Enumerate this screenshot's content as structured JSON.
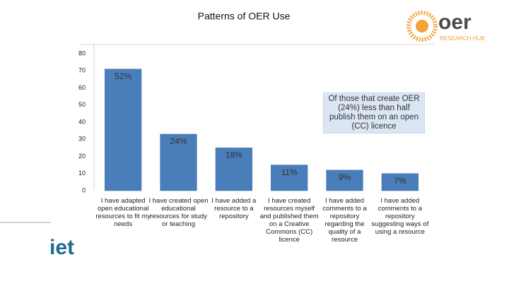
{
  "chart_data": {
    "type": "bar",
    "title": "Patterns of OER Use",
    "categories": [
      "I have adapted open educational resources to fit my needs",
      "I have created open educational resources for study or teaching",
      "I have added a resource to a repository",
      "I have created resources myself and published them on a Creative Commons (CC) licence",
      "I have added comments to a repository regarding the quality of a resource",
      "I have added comments to a repository suggesting ways of using a resource"
    ],
    "values": [
      71,
      33,
      25,
      15,
      12,
      10
    ],
    "percent_labels": [
      "52%",
      "24%",
      "18%",
      "11%",
      "9%",
      "7%"
    ],
    "color": "#4a7ebb",
    "ylim": [
      0,
      80
    ],
    "yticks": [
      0,
      10,
      20,
      30,
      40,
      50,
      60,
      70,
      80
    ],
    "grid": false,
    "annotation": "Of those that create OER (24%) less than half publish them on an open (CC) licence"
  },
  "logos": {
    "top_right": "oer",
    "top_right_sub": "RESEARCH HUB",
    "bottom_left": "iet"
  }
}
